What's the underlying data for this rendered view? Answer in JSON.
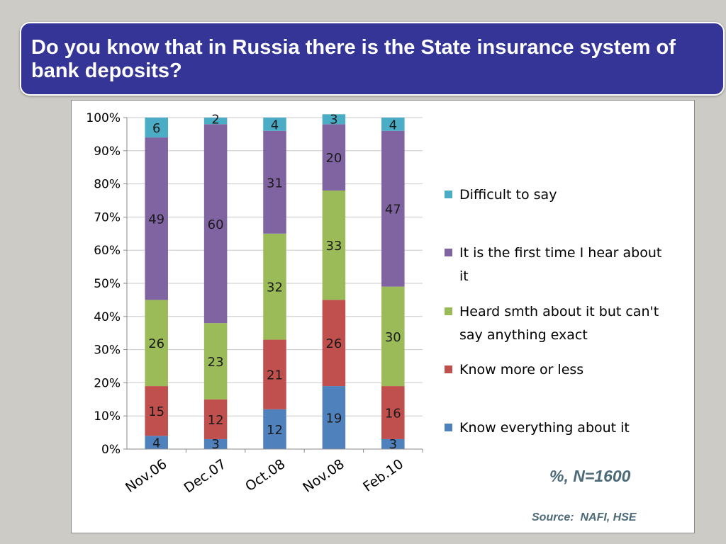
{
  "title": "Do you know that in Russia there is the State insurance system of bank deposits?",
  "note": "%, N=1600",
  "source": "Source:  NAFI, HSE",
  "chart_data": {
    "type": "bar",
    "stacked": true,
    "categories": [
      "Nov.06",
      "Dec.07",
      "Oct.08",
      "Nov.08",
      "Feb.10"
    ],
    "y_ticks": [
      "0%",
      "10%",
      "20%",
      "30%",
      "40%",
      "50%",
      "60%",
      "70%",
      "80%",
      "90%",
      "100%"
    ],
    "ylim": [
      0,
      100
    ],
    "grid": true,
    "legend_position": "right",
    "series": [
      {
        "name": "Know everything about it",
        "color": "#4f81bd",
        "values": [
          4,
          3,
          12,
          19,
          3
        ],
        "legend_lines": [
          "Know everything about it"
        ]
      },
      {
        "name": "Know more or less",
        "color": "#c0504d",
        "values": [
          15,
          12,
          21,
          26,
          16
        ],
        "legend_lines": [
          "Know more or less"
        ]
      },
      {
        "name": "Heard smth about it but can't say anything exact",
        "color": "#9bbb59",
        "values": [
          26,
          23,
          32,
          33,
          30
        ],
        "legend_lines": [
          "Heard smth about it but can't",
          "say anything exact"
        ]
      },
      {
        "name": "It is the first time I hear about it",
        "color": "#8064a2",
        "values": [
          49,
          60,
          31,
          20,
          47
        ],
        "legend_lines": [
          "It is the first time I hear about",
          "it"
        ]
      },
      {
        "name": "Difficult to say",
        "color": "#4bacc6",
        "values": [
          6,
          2,
          4,
          3,
          4
        ],
        "legend_lines": [
          "Difficult to say"
        ]
      }
    ]
  }
}
